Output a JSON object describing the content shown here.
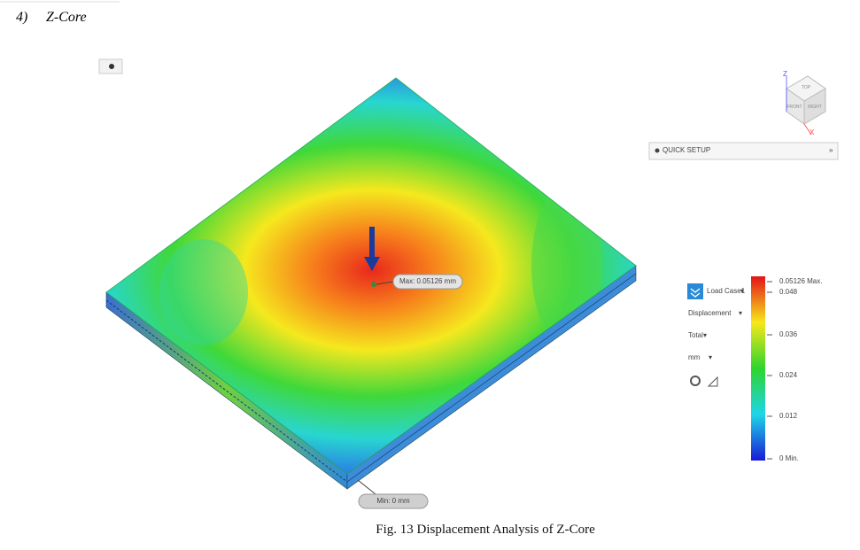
{
  "heading": {
    "number": "4)",
    "title": "Z-Core"
  },
  "viewcube": {
    "faces": [
      "TOP",
      "FRONT",
      "RIGHT"
    ],
    "axes": [
      "Z",
      "X"
    ]
  },
  "toolbar": {
    "label": "QUICK SETUP"
  },
  "probes": {
    "max": "Max: 0.05126 mm",
    "min": "Min: 0 mm"
  },
  "panel": {
    "load_case": "Load Case1",
    "result": "Displacement",
    "component": "Total",
    "unit": "mm"
  },
  "legend": {
    "labels": [
      "0.05126 Max.",
      "0.048",
      "0.036",
      "0.024",
      "0.012",
      "0 Min."
    ]
  },
  "caption": "Fig. 13 Displacement Analysis of Z-Core"
}
